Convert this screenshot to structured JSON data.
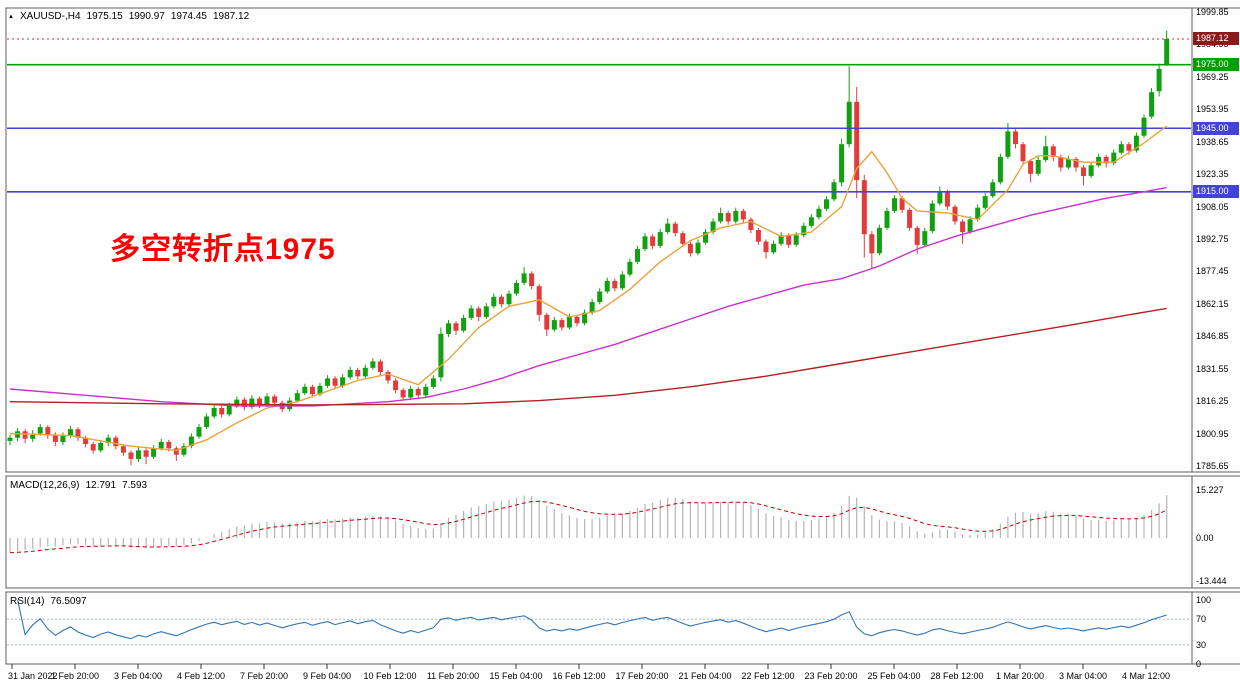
{
  "header": {
    "symbol_period": "XAUUSD-,H4",
    "open": "1975.15",
    "high": "1990.97",
    "low": "1974.45",
    "close": "1987.12"
  },
  "icons": {
    "expand_arrow": "▲"
  },
  "annotation": {
    "text": "多空转折点1975",
    "color": "#FF0000"
  },
  "chart_data": {
    "type": "candlestick",
    "symbol": "XAUUSD-",
    "timeframe": "H4",
    "grid": false,
    "legend": false,
    "y_axis": {
      "max": 1999.85,
      "min": 1785.65,
      "ticks": [
        "1999.85",
        "1984.55",
        "1969.25",
        "1953.95",
        "1938.65",
        "1923.35",
        "1908.05",
        "1892.75",
        "1877.45",
        "1862.15",
        "1846.85",
        "1831.55",
        "1816.25",
        "1800.95",
        "1785.65"
      ]
    },
    "x_labels": [
      "31 Jan 2022",
      "1 Feb 20:00",
      "3 Feb 04:00",
      "4 Feb 12:00",
      "7 Feb 20:00",
      "9 Feb 04:00",
      "10 Feb 12:00",
      "11 Feb 20:00",
      "15 Feb 04:00",
      "16 Feb 12:00",
      "17 Feb 20:00",
      "21 Feb 04:00",
      "22 Feb 12:00",
      "23 Feb 20:00",
      "25 Feb 04:00",
      "28 Feb 12:00",
      "1 Mar 20:00",
      "3 Mar 04:00",
      "4 Mar 12:00"
    ],
    "colors": {
      "up": "#10A010",
      "down": "#E33A3A",
      "background": "#FFFFFF"
    },
    "candles_ohlc": [
      [
        1797.5,
        1800.5,
        1795.5,
        1799
      ],
      [
        1799,
        1803.5,
        1797.5,
        1802
      ],
      [
        1802,
        1803,
        1796.5,
        1798.5
      ],
      [
        1798.5,
        1802.5,
        1797,
        1801
      ],
      [
        1801,
        1805.5,
        1800,
        1804
      ],
      [
        1804,
        1805,
        1798.5,
        1800.5
      ],
      [
        1800.5,
        1801.5,
        1795,
        1797
      ],
      [
        1797,
        1801.5,
        1795.5,
        1800
      ],
      [
        1800,
        1804.5,
        1799,
        1803
      ],
      [
        1803,
        1804,
        1797.5,
        1799
      ],
      [
        1799,
        1800,
        1794.5,
        1796
      ],
      [
        1796,
        1797,
        1791.5,
        1793
      ],
      [
        1793,
        1798,
        1792,
        1796.5
      ],
      [
        1796.5,
        1800.5,
        1795,
        1799
      ],
      [
        1799,
        1800,
        1793.5,
        1795
      ],
      [
        1795,
        1796,
        1790.5,
        1792
      ],
      [
        1792,
        1793,
        1786,
        1789
      ],
      [
        1789,
        1794.5,
        1787.5,
        1793
      ],
      [
        1793,
        1794,
        1786.5,
        1790
      ],
      [
        1790,
        1795.5,
        1789,
        1794
      ],
      [
        1794,
        1798.5,
        1793,
        1797
      ],
      [
        1797,
        1798,
        1792.5,
        1794
      ],
      [
        1794,
        1795,
        1788,
        1791
      ],
      [
        1791,
        1796.5,
        1790,
        1795
      ],
      [
        1795,
        1801,
        1794,
        1799.5
      ],
      [
        1799.5,
        1805.5,
        1798.5,
        1804
      ],
      [
        1804,
        1810.5,
        1803,
        1809
      ],
      [
        1809,
        1814.5,
        1808,
        1813
      ],
      [
        1813,
        1814,
        1808.5,
        1810
      ],
      [
        1810,
        1815.5,
        1809,
        1814
      ],
      [
        1814,
        1818.5,
        1813,
        1817
      ],
      [
        1817,
        1818,
        1812,
        1813.5
      ],
      [
        1813.5,
        1819,
        1812.5,
        1817.5
      ],
      [
        1817.5,
        1818.5,
        1813,
        1814.5
      ],
      [
        1814.5,
        1820,
        1813.5,
        1818.5
      ],
      [
        1818.5,
        1819.5,
        1814,
        1815.5
      ],
      [
        1815.5,
        1816.5,
        1811,
        1812.5
      ],
      [
        1812.5,
        1818,
        1811.5,
        1816.5
      ],
      [
        1816.5,
        1821.5,
        1815.5,
        1820
      ],
      [
        1820,
        1824.5,
        1819,
        1823
      ],
      [
        1823,
        1824,
        1818,
        1819.5
      ],
      [
        1819.5,
        1825,
        1818.5,
        1823.5
      ],
      [
        1823.5,
        1828.5,
        1822.5,
        1827
      ],
      [
        1827,
        1828,
        1822,
        1823.5
      ],
      [
        1823.5,
        1829,
        1822.5,
        1827.5
      ],
      [
        1827.5,
        1832.5,
        1826.5,
        1831
      ],
      [
        1831,
        1832,
        1826.5,
        1828
      ],
      [
        1828,
        1833.5,
        1827,
        1832
      ],
      [
        1832,
        1836.5,
        1831,
        1835
      ],
      [
        1835,
        1836,
        1828.5,
        1830
      ],
      [
        1830,
        1831,
        1824.5,
        1826
      ],
      [
        1826,
        1827,
        1820,
        1821.5
      ],
      [
        1821.5,
        1822.5,
        1816.5,
        1818
      ],
      [
        1818,
        1823.5,
        1817,
        1822
      ],
      [
        1822,
        1823,
        1817.5,
        1819
      ],
      [
        1819,
        1824.5,
        1818,
        1823
      ],
      [
        1823,
        1828.5,
        1822,
        1827
      ],
      [
        1827.5,
        1851,
        1825.5,
        1848
      ],
      [
        1848,
        1854.5,
        1846.5,
        1853
      ],
      [
        1853,
        1854,
        1847.5,
        1849.5
      ],
      [
        1849.5,
        1857,
        1848.5,
        1855.5
      ],
      [
        1855.5,
        1861.5,
        1854.5,
        1860
      ],
      [
        1860,
        1861,
        1854,
        1856
      ],
      [
        1856,
        1862.5,
        1855,
        1861
      ],
      [
        1861,
        1867,
        1860,
        1865.5
      ],
      [
        1865.5,
        1866.5,
        1860.5,
        1862
      ],
      [
        1862,
        1868.5,
        1861,
        1867
      ],
      [
        1867,
        1873.5,
        1866,
        1872
      ],
      [
        1872,
        1879.5,
        1871,
        1876.5
      ],
      [
        1876.5,
        1877.5,
        1869,
        1870.5
      ],
      [
        1870.5,
        1871.5,
        1854,
        1857
      ],
      [
        1857,
        1858,
        1847,
        1850
      ],
      [
        1850,
        1856,
        1849,
        1854.5
      ],
      [
        1854.5,
        1855.5,
        1849.5,
        1851
      ],
      [
        1851,
        1857.5,
        1850,
        1856
      ],
      [
        1856,
        1857,
        1851.5,
        1853
      ],
      [
        1853,
        1859.5,
        1852,
        1858
      ],
      [
        1858,
        1864.5,
        1857,
        1863
      ],
      [
        1863,
        1869.5,
        1862,
        1868
      ],
      [
        1868,
        1874.5,
        1867,
        1873
      ],
      [
        1873,
        1874,
        1868,
        1869.5
      ],
      [
        1869.5,
        1877.5,
        1868.5,
        1876
      ],
      [
        1876,
        1883.5,
        1875,
        1882
      ],
      [
        1882,
        1889.5,
        1881,
        1888
      ],
      [
        1888,
        1895.5,
        1887,
        1894
      ],
      [
        1894,
        1895,
        1888,
        1889.5
      ],
      [
        1889.5,
        1897.5,
        1888.5,
        1896
      ],
      [
        1896,
        1902.5,
        1895,
        1900
      ],
      [
        1900,
        1901,
        1894,
        1895.5
      ],
      [
        1895.5,
        1896.5,
        1889,
        1890.5
      ],
      [
        1890.5,
        1891.5,
        1884.5,
        1886
      ],
      [
        1886,
        1892.5,
        1885,
        1891
      ],
      [
        1891,
        1897.5,
        1890,
        1896
      ],
      [
        1896,
        1902.5,
        1895,
        1901
      ],
      [
        1901,
        1907.5,
        1900,
        1905
      ],
      [
        1905,
        1906,
        1899.5,
        1901
      ],
      [
        1901,
        1907.5,
        1900,
        1906
      ],
      [
        1906,
        1907,
        1900.5,
        1902
      ],
      [
        1902,
        1903,
        1895.5,
        1897
      ],
      [
        1897,
        1898,
        1890,
        1891.5
      ],
      [
        1891.5,
        1892.5,
        1883.5,
        1886.5
      ],
      [
        1886.5,
        1892,
        1885.5,
        1890.5
      ],
      [
        1890.5,
        1896,
        1889.5,
        1894.5
      ],
      [
        1894.5,
        1895.5,
        1888.5,
        1890
      ],
      [
        1890,
        1896,
        1889,
        1894.5
      ],
      [
        1894.5,
        1900.5,
        1893.5,
        1899
      ],
      [
        1899,
        1904.5,
        1898,
        1903
      ],
      [
        1903,
        1908.5,
        1902,
        1907
      ],
      [
        1907,
        1913,
        1906,
        1911.5
      ],
      [
        1911.5,
        1921,
        1910.5,
        1919.5
      ],
      [
        1919.5,
        1940,
        1917.5,
        1937.5
      ],
      [
        1937.5,
        1974.3,
        1936,
        1957.5
      ],
      [
        1957.5,
        1964.5,
        1912,
        1920.5
      ],
      [
        1920.5,
        1923,
        1884,
        1895
      ],
      [
        1895,
        1896.5,
        1878.5,
        1886
      ],
      [
        1886,
        1899.5,
        1885,
        1898
      ],
      [
        1898,
        1907.5,
        1897,
        1906
      ],
      [
        1906,
        1913.5,
        1905,
        1912
      ],
      [
        1912,
        1913,
        1905,
        1906.5
      ],
      [
        1906.5,
        1907.5,
        1896.5,
        1898
      ],
      [
        1898,
        1899,
        1885.5,
        1890
      ],
      [
        1890,
        1898,
        1889,
        1896.5
      ],
      [
        1896.5,
        1911,
        1895.5,
        1909.5
      ],
      [
        1909.5,
        1917.5,
        1908.5,
        1915
      ],
      [
        1915,
        1916,
        1906.5,
        1908
      ],
      [
        1908,
        1909,
        1899.5,
        1901
      ],
      [
        1901,
        1902,
        1890.5,
        1896
      ],
      [
        1896,
        1903.5,
        1895,
        1902
      ],
      [
        1902,
        1909,
        1901,
        1907.5
      ],
      [
        1907.5,
        1914.5,
        1906.5,
        1913
      ],
      [
        1913,
        1921,
        1912,
        1919.5
      ],
      [
        1919.5,
        1933,
        1918.5,
        1931.5
      ],
      [
        1931.5,
        1947.5,
        1930.5,
        1943.5
      ],
      [
        1943.5,
        1944.5,
        1935.5,
        1937.5
      ],
      [
        1937.5,
        1938.5,
        1927.5,
        1929.5
      ],
      [
        1929.5,
        1930.5,
        1919.5,
        1923.5
      ],
      [
        1923.5,
        1931.5,
        1922.5,
        1930
      ],
      [
        1930,
        1941.5,
        1929,
        1936.5
      ],
      [
        1936.5,
        1937.5,
        1929.5,
        1931.5
      ],
      [
        1931.5,
        1932.5,
        1924.5,
        1926.5
      ],
      [
        1926.5,
        1932,
        1925.5,
        1930.5
      ],
      [
        1930.5,
        1931.5,
        1924.5,
        1926.5
      ],
      [
        1926.5,
        1927.5,
        1918,
        1922.5
      ],
      [
        1922.5,
        1929,
        1921.5,
        1927.5
      ],
      [
        1927.5,
        1933,
        1926.5,
        1931.5
      ],
      [
        1931.5,
        1932.5,
        1926.5,
        1928.5
      ],
      [
        1928.5,
        1935,
        1927.5,
        1933.5
      ],
      [
        1933.5,
        1939,
        1932.5,
        1937.5
      ],
      [
        1937.5,
        1938.5,
        1932.5,
        1934.5
      ],
      [
        1934.5,
        1943,
        1933.5,
        1941.5
      ],
      [
        1941.5,
        1951.5,
        1940.5,
        1950
      ],
      [
        1950.5,
        1964,
        1949.5,
        1962
      ],
      [
        1962.5,
        1975.5,
        1960,
        1973
      ],
      [
        1975.15,
        1990.97,
        1974.45,
        1987.12
      ]
    ],
    "moving_averages": [
      {
        "name": "fast-ma",
        "color": "#E8A33C",
        "points": [
          [
            0,
            1801
          ],
          [
            8,
            1800
          ],
          [
            16,
            1795
          ],
          [
            22,
            1793
          ],
          [
            26,
            1798
          ],
          [
            30,
            1806
          ],
          [
            34,
            1813
          ],
          [
            38,
            1816
          ],
          [
            42,
            1821
          ],
          [
            46,
            1826
          ],
          [
            50,
            1829
          ],
          [
            54,
            1824
          ],
          [
            58,
            1836
          ],
          [
            62,
            1851
          ],
          [
            66,
            1861
          ],
          [
            70,
            1864
          ],
          [
            74,
            1856
          ],
          [
            78,
            1859
          ],
          [
            82,
            1869
          ],
          [
            86,
            1882
          ],
          [
            90,
            1892
          ],
          [
            94,
            1898
          ],
          [
            98,
            1901
          ],
          [
            102,
            1894
          ],
          [
            106,
            1896
          ],
          [
            110,
            1908
          ],
          [
            112,
            1926
          ],
          [
            114,
            1934
          ],
          [
            116,
            1924
          ],
          [
            118,
            1912
          ],
          [
            120,
            1906
          ],
          [
            124,
            1905
          ],
          [
            128,
            1902
          ],
          [
            132,
            1916
          ],
          [
            134,
            1928
          ],
          [
            136,
            1932
          ],
          [
            138,
            1932
          ],
          [
            142,
            1929
          ],
          [
            146,
            1929
          ],
          [
            150,
            1938
          ],
          [
            153,
            1946
          ]
        ]
      },
      {
        "name": "mid-ma",
        "color": "#CC2FCC",
        "points": [
          [
            0,
            1822
          ],
          [
            10,
            1819
          ],
          [
            20,
            1816
          ],
          [
            30,
            1814
          ],
          [
            40,
            1814
          ],
          [
            50,
            1816
          ],
          [
            55,
            1818
          ],
          [
            60,
            1822
          ],
          [
            65,
            1827
          ],
          [
            70,
            1833
          ],
          [
            75,
            1838
          ],
          [
            80,
            1843
          ],
          [
            85,
            1849
          ],
          [
            90,
            1855
          ],
          [
            95,
            1861
          ],
          [
            100,
            1866
          ],
          [
            105,
            1871
          ],
          [
            110,
            1874
          ],
          [
            115,
            1880
          ],
          [
            120,
            1888
          ],
          [
            125,
            1894
          ],
          [
            130,
            1899
          ],
          [
            135,
            1904
          ],
          [
            140,
            1908
          ],
          [
            145,
            1912
          ],
          [
            150,
            1915
          ],
          [
            153,
            1917
          ]
        ]
      },
      {
        "name": "slow-ma",
        "color": "#B22222",
        "points": [
          [
            0,
            1816
          ],
          [
            20,
            1815
          ],
          [
            40,
            1814.5
          ],
          [
            60,
            1815
          ],
          [
            70,
            1816.5
          ],
          [
            80,
            1819
          ],
          [
            90,
            1823
          ],
          [
            100,
            1828
          ],
          [
            110,
            1834
          ],
          [
            120,
            1840
          ],
          [
            130,
            1846
          ],
          [
            140,
            1852
          ],
          [
            148,
            1857
          ],
          [
            153,
            1860
          ]
        ]
      }
    ],
    "horizontal_lines": [
      {
        "price": 1975.0,
        "label": "1975.00",
        "color": "#00A000"
      },
      {
        "price": 1945.0,
        "label": "1945.00",
        "color": "#4343D6"
      },
      {
        "price": 1915.0,
        "label": "1915.00",
        "color": "#4343D6"
      }
    ],
    "current_price": {
      "value": 1987.12,
      "label": "1987.12",
      "badge_color": "#8B1A1A",
      "line_color": "#CC3333"
    },
    "indicators": [
      {
        "name": "MACD",
        "label": "MACD(12,26,9)",
        "value_main": "12.791",
        "value_signal": "7.593",
        "params": [
          12,
          26,
          9
        ],
        "axis_ticks": [
          {
            "label": "15.227",
            "value": 15.227
          },
          {
            "label": "0.00",
            "value": 0
          },
          {
            "label": "-13.444",
            "value": -13.444
          }
        ],
        "histogram_color": "#B4B4B4",
        "signal_color": "#C00000"
      },
      {
        "name": "RSI",
        "label": "RSI(14)",
        "value": "76.5097",
        "period": 14,
        "axis_ticks": [
          {
            "label": "100",
            "value": 100
          },
          {
            "label": "70",
            "value": 70
          },
          {
            "label": "30",
            "value": 30
          },
          {
            "label": "0",
            "value": 0
          }
        ],
        "levels": [
          70,
          30
        ],
        "line_color": "#2E75B6",
        "level_color": "#A8BFD4"
      }
    ]
  }
}
